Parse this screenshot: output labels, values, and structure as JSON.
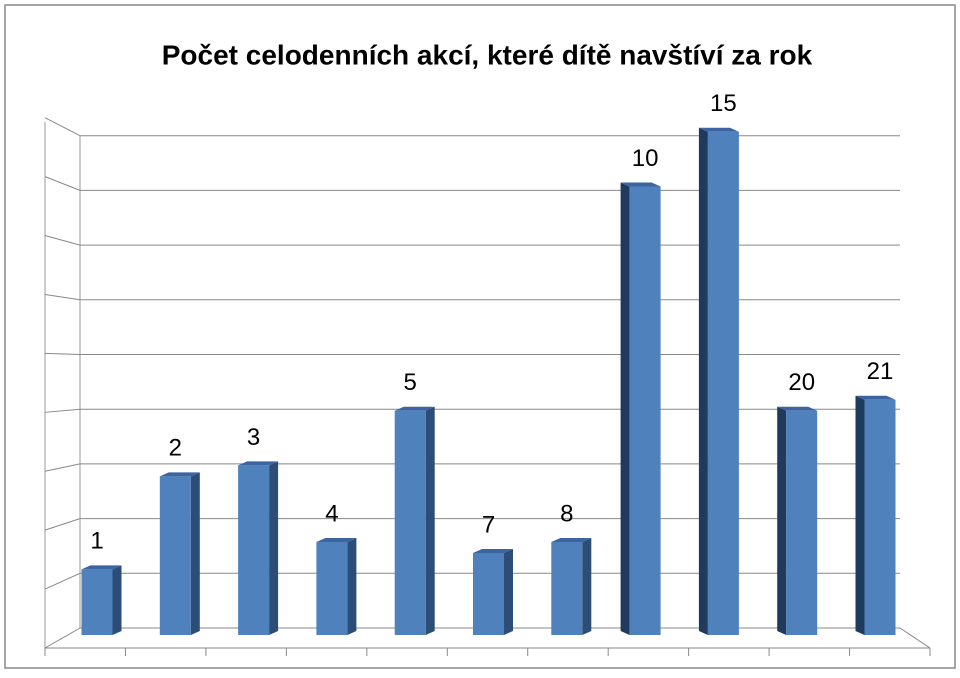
{
  "chart_data": {
    "type": "bar",
    "title": "Počet celodenních akcí, které dítě navštíví za rok",
    "categories": [
      "1",
      "2",
      "3",
      "4",
      "5",
      "7",
      "8",
      "10",
      "15",
      "20",
      "21"
    ],
    "values": [
      1.2,
      2.9,
      3.1,
      1.7,
      4.1,
      1.5,
      1.7,
      8.2,
      9.2,
      4.1,
      4.3
    ],
    "color": "#4f81bd",
    "ylim": [
      0,
      9
    ],
    "yticks": [
      0,
      1,
      2,
      3,
      4,
      5,
      6,
      7,
      8,
      9
    ],
    "grid": true
  }
}
